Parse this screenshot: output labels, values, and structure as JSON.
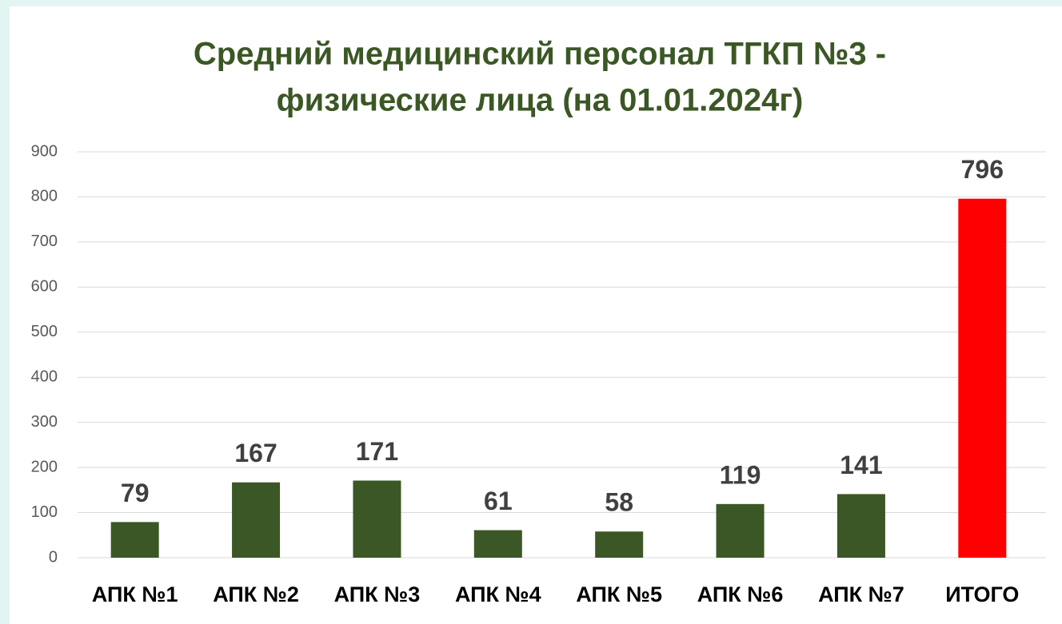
{
  "chart_data": {
    "type": "bar",
    "title": [
      "Средний медицинский персонал ТГКП №3 -",
      "физические лица (на 01.01.2024г)"
    ],
    "categories": [
      "АПК №1",
      "АПК №2",
      "АПК №3",
      "АПК №4",
      "АПК №5",
      "АПК №6",
      "АПК №7",
      "ИТОГО"
    ],
    "values": [
      79,
      167,
      171,
      61,
      58,
      119,
      141,
      796
    ],
    "colors": [
      "#3b5725",
      "#3b5725",
      "#3b5725",
      "#3b5725",
      "#3b5725",
      "#3b5725",
      "#3b5725",
      "#ff0000"
    ],
    "ylim": [
      0,
      900
    ],
    "yticks": [
      0,
      100,
      200,
      300,
      400,
      500,
      600,
      700,
      800,
      900
    ],
    "grid": true
  }
}
